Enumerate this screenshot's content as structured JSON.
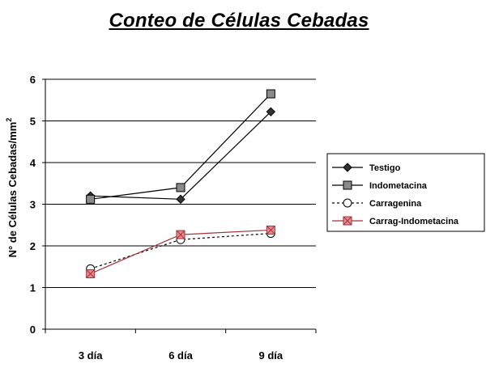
{
  "chart_data": {
    "type": "line",
    "title": "Conteo de Células Cebadas",
    "ylabel": "N° de Células Cebadas/mm",
    "ylabel_superscript": "2",
    "xlabel": "",
    "categories": [
      "3 día",
      "6 día",
      "9 día"
    ],
    "ylim": [
      0,
      6
    ],
    "yticks": [
      0,
      1,
      2,
      3,
      4,
      5,
      6
    ],
    "grid": true,
    "legend_position": "right",
    "series": [
      {
        "name": "Testigo",
        "values": [
          3.2,
          3.12,
          5.22
        ],
        "color": "#000000",
        "marker": "diamond",
        "dash": "solid"
      },
      {
        "name": "Indometacina",
        "values": [
          3.12,
          3.4,
          5.65
        ],
        "color": "#000000",
        "marker": "square",
        "dash": "solid"
      },
      {
        "name": "Carragenina",
        "values": [
          1.45,
          2.15,
          2.3
        ],
        "color": "#000000",
        "marker": "circle",
        "dash": "dotted"
      },
      {
        "name": "Carrag-Indometacina",
        "values": [
          1.33,
          2.27,
          2.38
        ],
        "color": "#a0323a",
        "marker": "square-x",
        "dash": "solid"
      }
    ]
  }
}
